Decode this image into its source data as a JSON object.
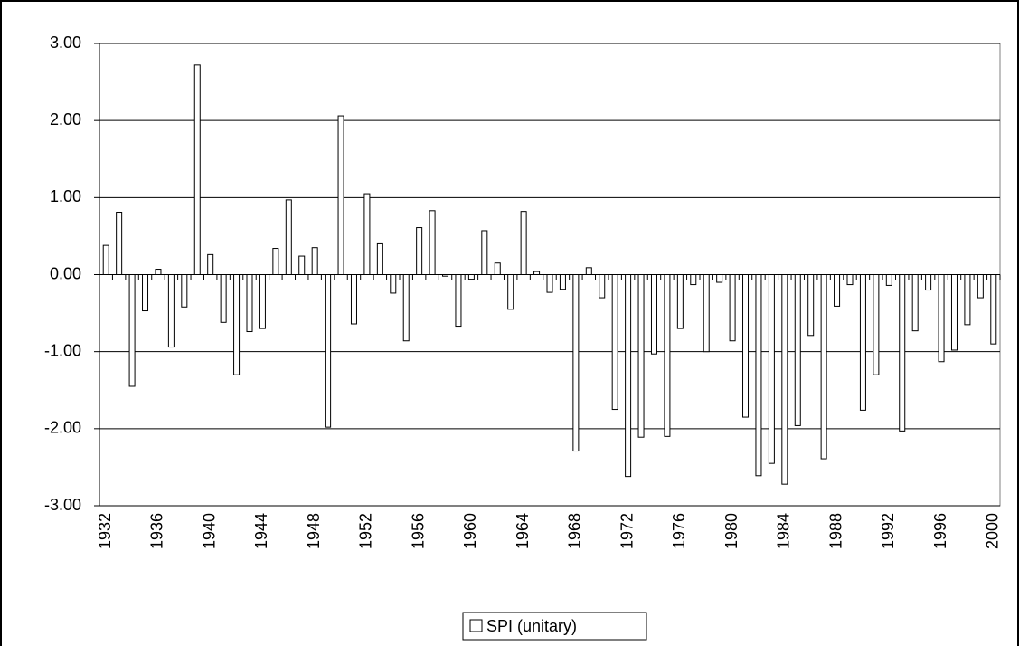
{
  "chart_data": {
    "type": "bar",
    "categories": [
      "1932",
      null,
      null,
      null,
      "1936",
      null,
      null,
      null,
      "1940",
      null,
      null,
      null,
      "1944",
      null,
      null,
      null,
      "1948",
      null,
      null,
      null,
      "1952",
      null,
      null,
      null,
      "1956",
      null,
      null,
      null,
      "1960",
      null,
      null,
      null,
      "1964",
      null,
      null,
      null,
      "1968",
      null,
      null,
      null,
      "1972",
      null,
      null,
      null,
      "1976",
      null,
      null,
      null,
      "1980",
      null,
      null,
      null,
      "1984",
      null,
      null,
      null,
      "1988",
      null,
      null,
      null,
      "1992",
      null,
      null,
      null,
      "1996",
      null,
      null,
      null,
      "2000"
    ],
    "series": [
      {
        "name": "SPI (unitary)",
        "color": "#ffffff",
        "values": [
          0.38,
          0.81,
          -1.45,
          -0.47,
          0.07,
          -0.94,
          -0.42,
          2.72,
          0.26,
          -0.62,
          -1.3,
          -0.74,
          -0.7,
          0.34,
          0.97,
          0.24,
          0.35,
          -1.98,
          2.06,
          -0.64,
          1.05,
          0.4,
          -0.24,
          -0.86,
          0.61,
          0.83,
          -0.02,
          -0.67,
          -0.06,
          0.57,
          0.15,
          -0.45,
          0.82,
          0.04,
          -0.23,
          -0.19,
          -2.29,
          0.09,
          -0.3,
          -1.75,
          -2.62,
          -2.11,
          -1.03,
          -2.1,
          -0.7,
          -0.13,
          -1.0,
          -0.1,
          -0.86,
          -1.85,
          -2.61,
          -2.45,
          -2.72,
          -1.96,
          -0.79,
          -2.39,
          -0.41,
          -0.13,
          -1.76,
          -1.3,
          -0.14,
          -2.03,
          -0.73,
          -0.2,
          -1.13,
          -0.98,
          -0.65,
          -0.3,
          -0.9
        ]
      }
    ],
    "ylim": [
      -3,
      3
    ],
    "yticks": [
      {
        "value": -3,
        "label": "-3.00"
      },
      {
        "value": -2,
        "label": "-2.00"
      },
      {
        "value": -1,
        "label": "-1.00"
      },
      {
        "value": 0,
        "label": "0.00"
      },
      {
        "value": 1,
        "label": "1.00"
      },
      {
        "value": 2,
        "label": "2.00"
      },
      {
        "value": 3,
        "label": "3.00"
      }
    ],
    "grid": true,
    "legend": "bottom"
  }
}
